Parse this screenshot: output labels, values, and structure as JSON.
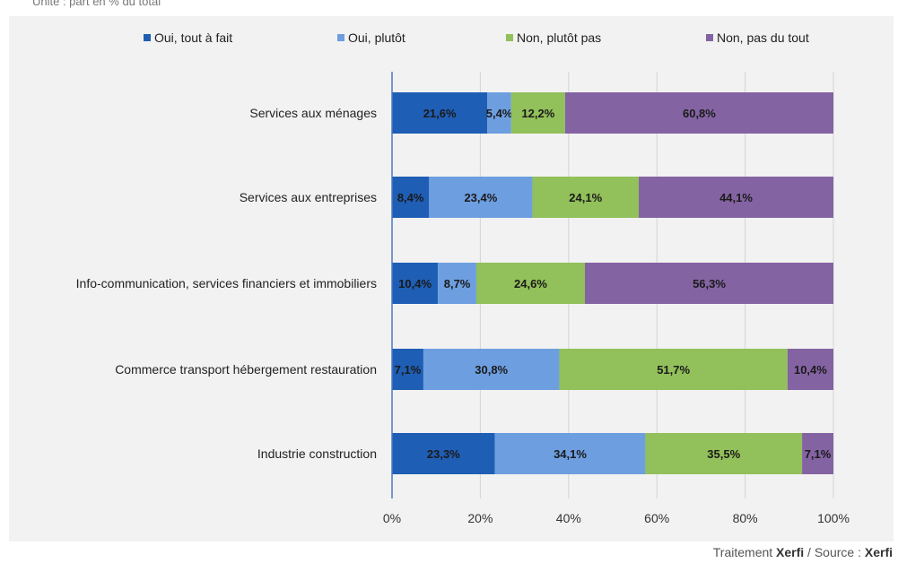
{
  "header": {
    "unit_text": "Unité : part en % du total"
  },
  "source": {
    "prefix": "Traitement ",
    "brand1": "Xerfi",
    "middle": " / Source : ",
    "brand2": "Xerfi"
  },
  "colors": {
    "oui_tout_a_fait": "#1f5eb5",
    "oui_plutot": "#6d9ee0",
    "non_plutot_pas": "#92c05a",
    "non_pas_du_tout": "#8463a3",
    "axis": "#4a77c4",
    "grid": "#d4d4d4",
    "panel": "#f2f2f2"
  },
  "chart_data": {
    "type": "bar",
    "orientation": "horizontal",
    "stacked": true,
    "categories": [
      "Services aux ménages",
      "Services aux entreprises",
      "Info-communication, services financiers et immobiliers",
      "Commerce transport hébergement restauration",
      "Industrie construction"
    ],
    "series": [
      {
        "name": "Oui, tout à fait",
        "color": "#1f5eb5",
        "values": [
          21.6,
          8.4,
          10.4,
          7.1,
          23.3
        ]
      },
      {
        "name": "Oui, plutôt",
        "color": "#6d9ee0",
        "values": [
          5.4,
          23.4,
          8.7,
          30.8,
          34.1
        ]
      },
      {
        "name": "Non, plutôt pas",
        "color": "#92c05a",
        "values": [
          12.2,
          24.1,
          24.6,
          51.7,
          35.5
        ]
      },
      {
        "name": "Non, pas du tout",
        "color": "#8463a3",
        "values": [
          60.8,
          44.1,
          56.3,
          10.4,
          7.1
        ]
      }
    ],
    "data_labels": [
      [
        "21,6%",
        "5,4%",
        "12,2%",
        "60,8%"
      ],
      [
        "8,4%",
        "23,4%",
        "24,1%",
        "44,1%"
      ],
      [
        "10,4%",
        "8,7%",
        "24,6%",
        "56,3%"
      ],
      [
        "7,1%",
        "30,8%",
        "51,7%",
        "10,4%"
      ],
      [
        "23,3%",
        "34,1%",
        "35,5%",
        "7,1%"
      ]
    ],
    "xlim": [
      0,
      100
    ],
    "x_ticks": [
      0,
      20,
      40,
      60,
      80,
      100
    ],
    "x_tick_labels": [
      "0%",
      "20%",
      "40%",
      "60%",
      "80%",
      "100%"
    ],
    "grid": true,
    "legend_position": "top"
  }
}
